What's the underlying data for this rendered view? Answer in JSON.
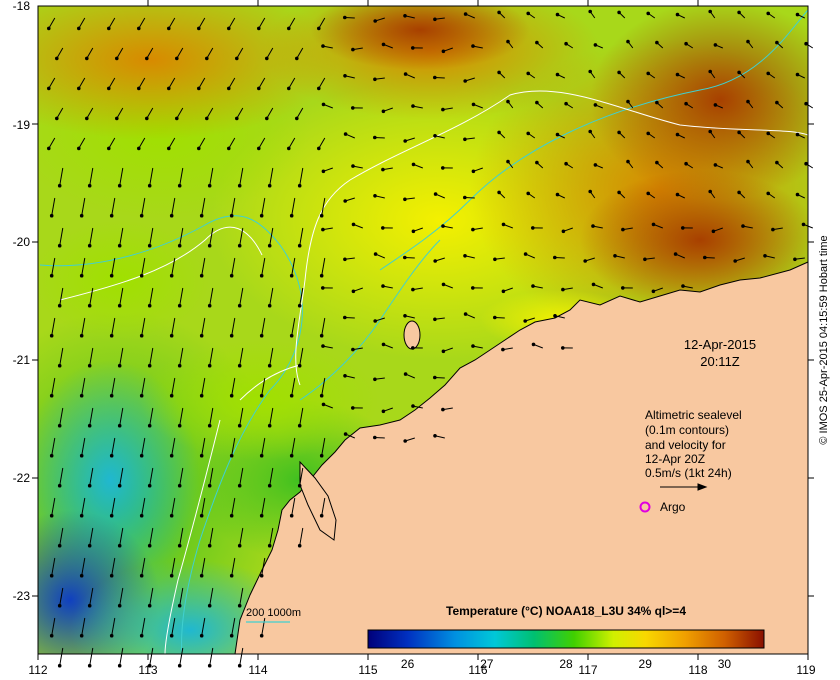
{
  "map": {
    "lon_ticks": [
      "112",
      "113",
      "114",
      "115",
      "116",
      "117",
      "118",
      "119"
    ],
    "lat_ticks": [
      "-18",
      "-19",
      "-20",
      "-21",
      "-22",
      "-23"
    ],
    "lon_range": [
      112,
      119
    ],
    "lat_range": [
      -23.5,
      -18
    ]
  },
  "date_label": {
    "date": "12-Apr-2015",
    "time": "20:11Z"
  },
  "legend": {
    "lines": [
      "Altimetric sealevel",
      "(0.1m contours)",
      "and velocity for",
      "12-Apr 20Z",
      "0.5m/s (1kt 24h)"
    ],
    "argo_label": "Argo",
    "depth_label": "200  1000m"
  },
  "colorbar": {
    "title": "Temperature (°C) NOAA18_L3U 34% ql>=4",
    "ticks": [
      "26",
      "27",
      "28",
      "29",
      "30"
    ],
    "min": 25.5,
    "max": 30.5
  },
  "credit": "© IMOS 25-Apr-2015 04:15:59 Hobart time",
  "colors": {
    "land": "#f8c8a0",
    "contour": "#ffffff",
    "isobath": "#40d0d0",
    "argo": "#e000e0"
  }
}
